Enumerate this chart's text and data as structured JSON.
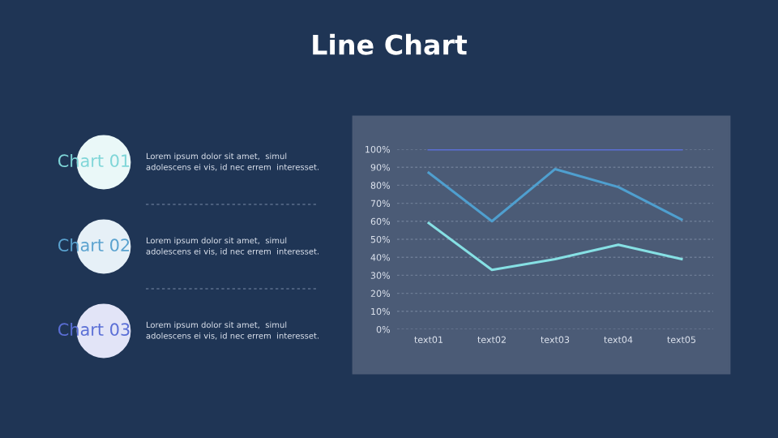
{
  "chart_data": {
    "type": "line",
    "title": "Line Chart",
    "categories": [
      "text01",
      "text02",
      "text03",
      "text04",
      "text05"
    ],
    "series": [
      {
        "color": "#5b6fd6",
        "values": [
          100,
          100,
          100,
          100,
          100
        ]
      },
      {
        "color": "#4f9fcf",
        "values": [
          87,
          60,
          89,
          79,
          61
        ]
      },
      {
        "color": "#86e0e4",
        "values": [
          59,
          33,
          39,
          47,
          39
        ]
      }
    ],
    "ylim": [
      0,
      100
    ],
    "yticks": [
      {
        "value": 0,
        "label": "0%"
      },
      {
        "value": 10,
        "label": "10%"
      },
      {
        "value": 20,
        "label": "20%"
      },
      {
        "value": 30,
        "label": "30%"
      },
      {
        "value": 40,
        "label": "40%"
      },
      {
        "value": 50,
        "label": "50%"
      },
      {
        "value": 60,
        "label": "60%"
      },
      {
        "value": 70,
        "label": "70%"
      },
      {
        "value": 80,
        "label": "80%"
      },
      {
        "value": 90,
        "label": "90%"
      },
      {
        "value": 100,
        "label": "100%"
      }
    ],
    "grid": "y",
    "marker": "none",
    "line_style": "solid",
    "annotations": [
      "Chart 01",
      "Lorem ipsum dolor sit amet,  simul\nadolescens ei vis, id nec errem  interesset.",
      "Chart 02",
      "Lorem ipsum dolor sit amet,  simul\nadolescens ei vis, id nec errem  interesset.",
      "Chart 03",
      "Lorem ipsum dolor sit amet,  simul\nadolescens ei vis, id nec errem  interesset."
    ]
  }
}
